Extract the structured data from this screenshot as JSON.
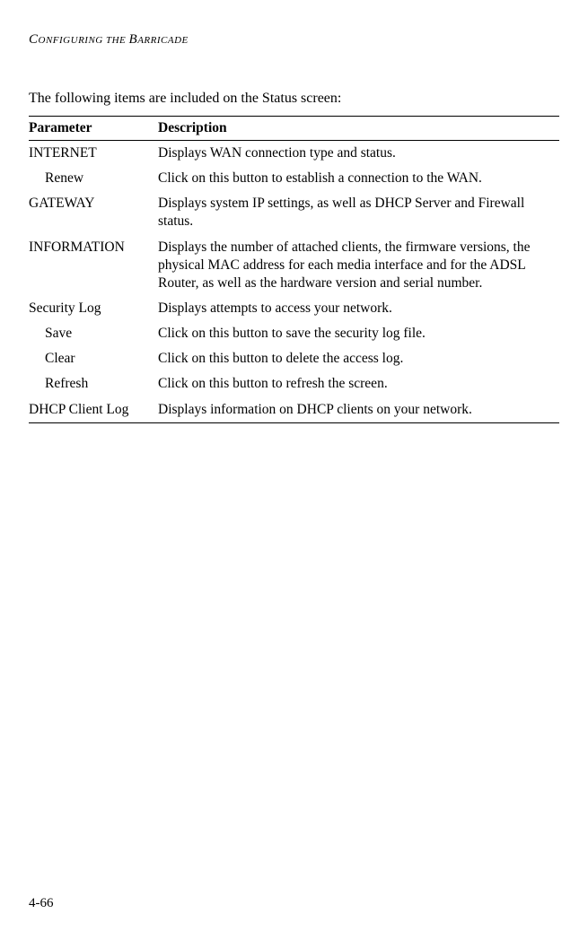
{
  "header": {
    "text_prefix": "C",
    "text_word1_rest": "ONFIGURING",
    "text_mid": " THE ",
    "text_word2_first": "B",
    "text_word2_rest": "ARRICADE"
  },
  "intro": "The following items are included on the Status screen:",
  "table": {
    "columns": [
      "Parameter",
      "Description"
    ],
    "rows": [
      {
        "param": "INTERNET",
        "indent": 0,
        "desc": "Displays WAN connection type and status."
      },
      {
        "param": "Renew",
        "indent": 1,
        "desc": "  Click on this button to establish a connection to the WAN."
      },
      {
        "param": "GATEWAY",
        "indent": 0,
        "desc": "Displays system IP settings, as well as DHCP Server and Firewall status."
      },
      {
        "param": "INFORMATION",
        "indent": 0,
        "desc": "Displays the number of attached clients, the firmware versions, the physical MAC address for each media interface and for the ADSL Router, as well as the hardware version and serial number."
      },
      {
        "param": "Security Log",
        "indent": 0,
        "desc": "Displays attempts to access your network."
      },
      {
        "param": "Save",
        "indent": 1,
        "desc": "Click on this button to save the security log file."
      },
      {
        "param": "Clear",
        "indent": 1,
        "desc": "Click on this button to delete the access log."
      },
      {
        "param": "Refresh",
        "indent": 1,
        "desc": "Click on this button to refresh the screen."
      },
      {
        "param": "DHCP Client Log",
        "indent": 0,
        "desc": "Displays information on DHCP clients on your network."
      }
    ]
  },
  "page_number": "4-66"
}
